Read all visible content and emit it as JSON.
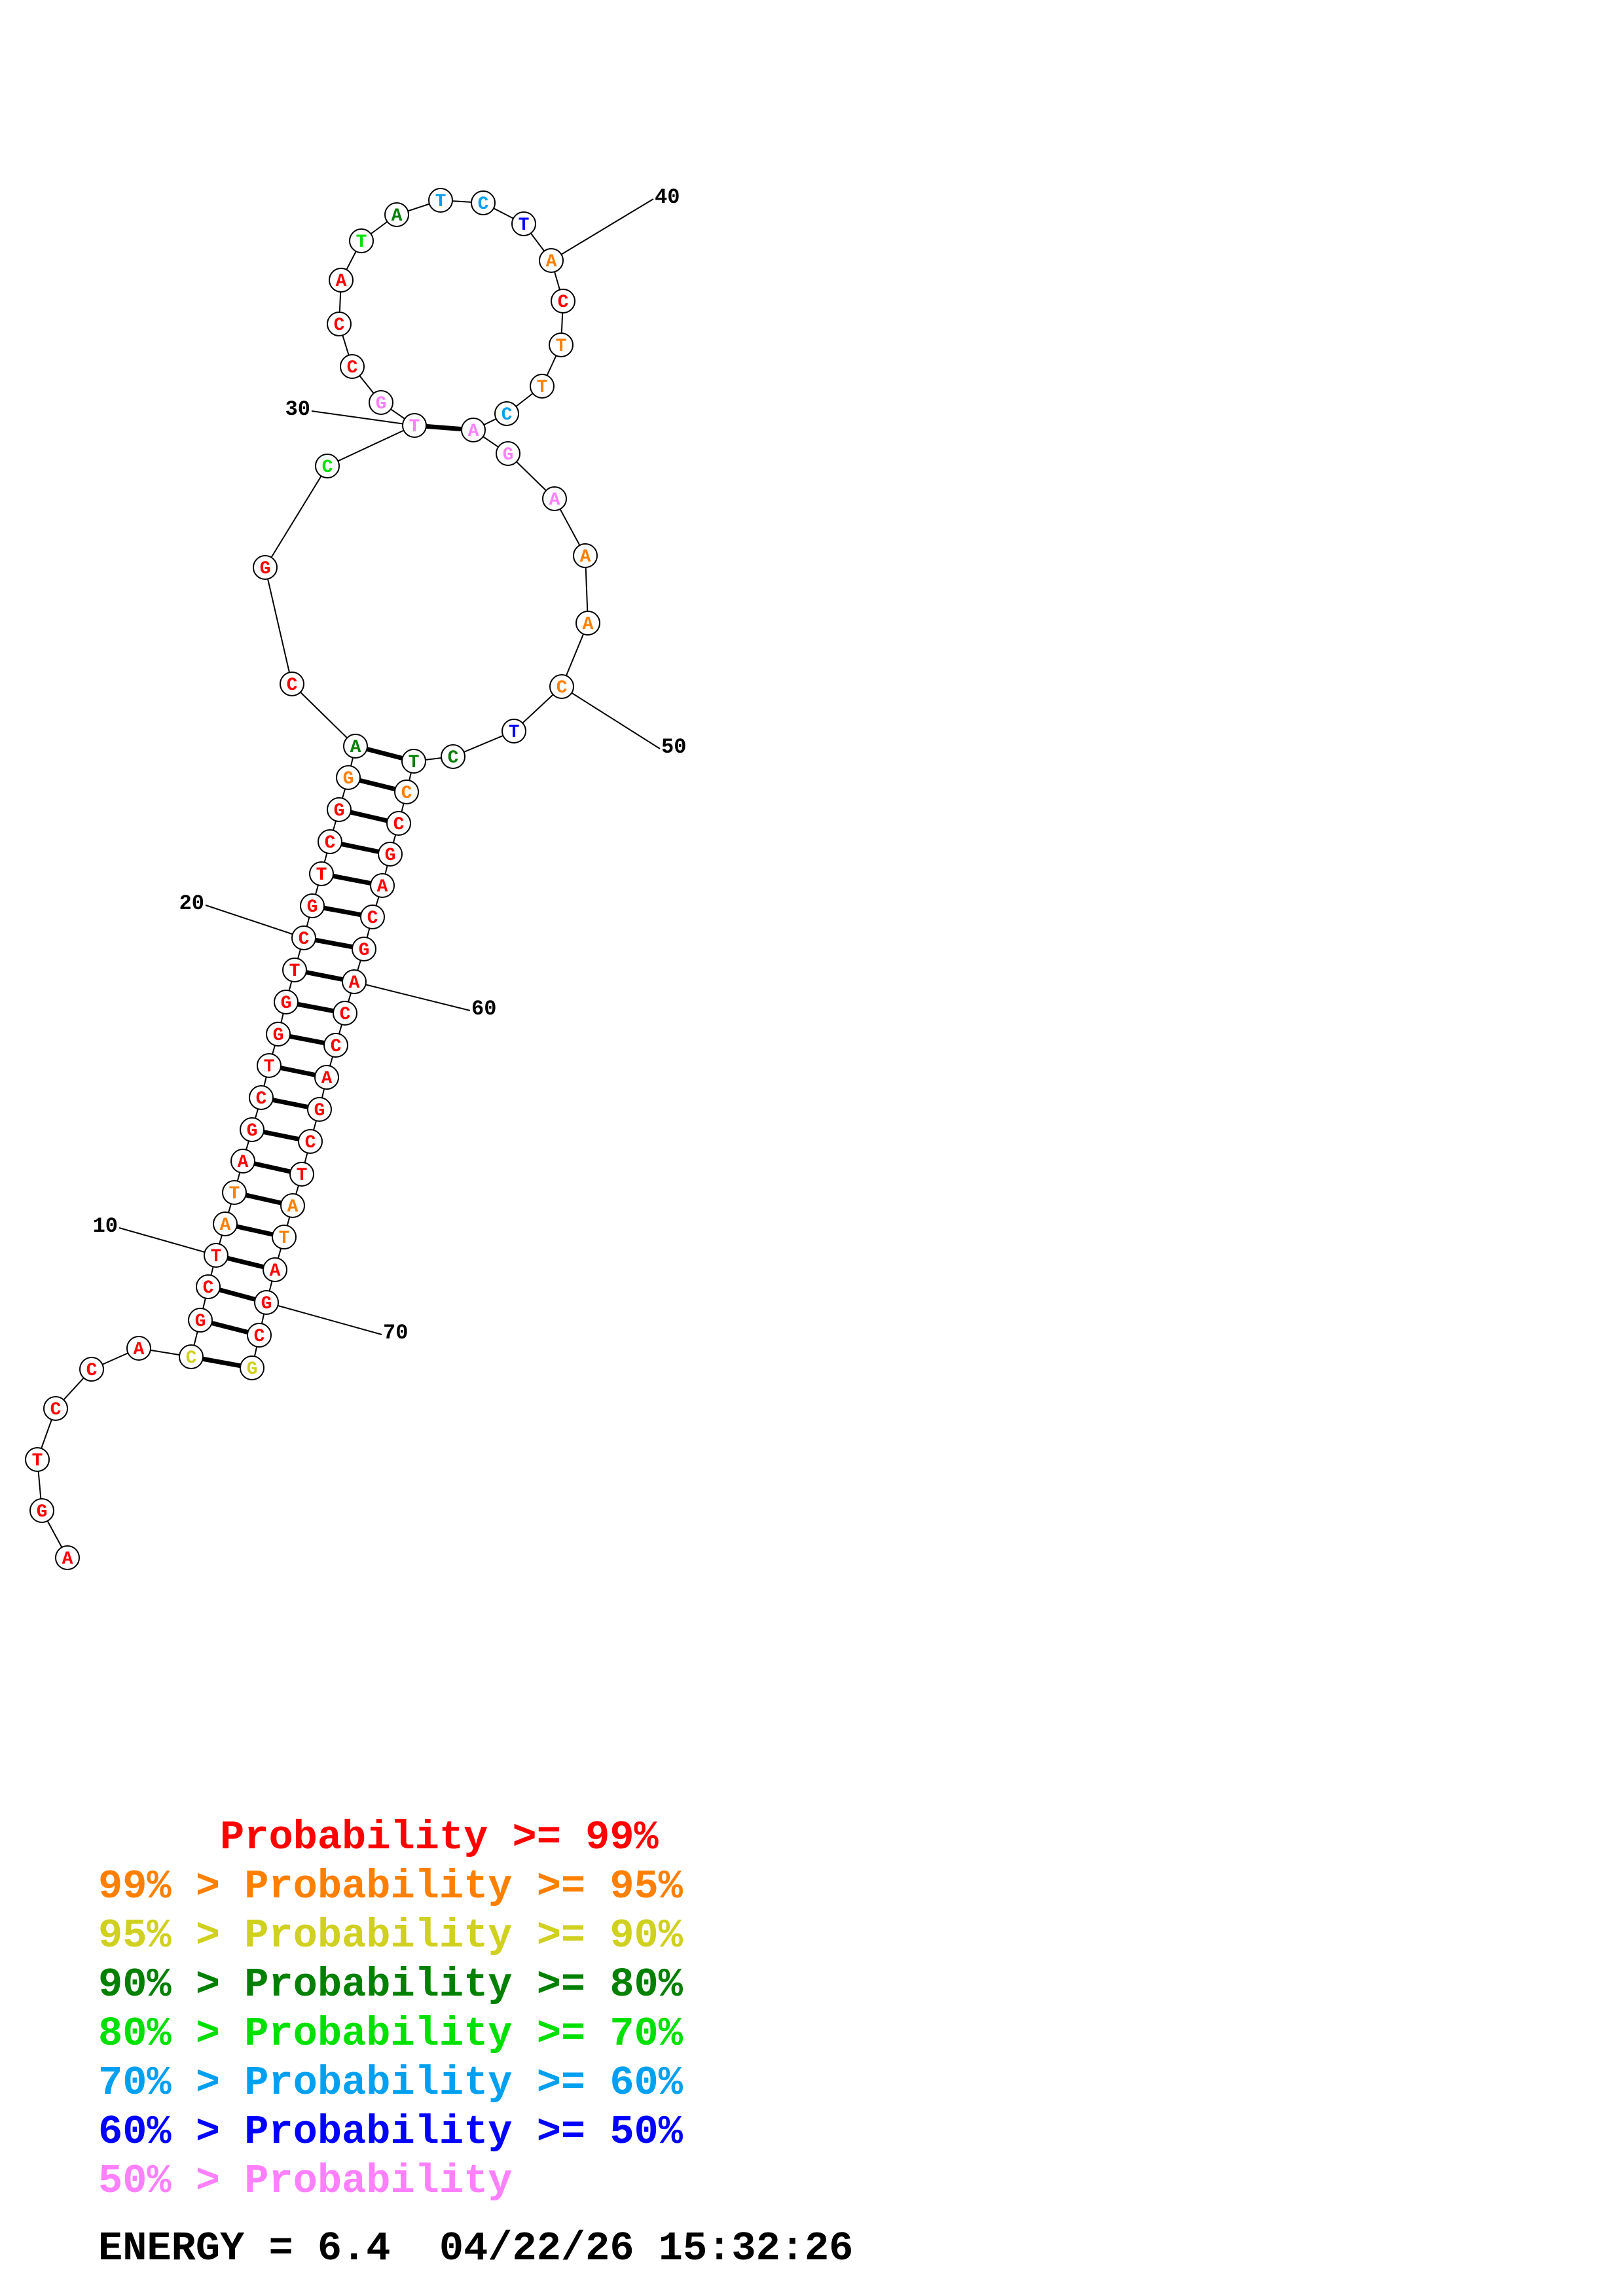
{
  "colors": {
    "red": "#ff0000",
    "orange": "#ff8000",
    "yellow": "#d0d020",
    "darkgreen": "#008000",
    "green": "#00e000",
    "lightblue": "#00a0f0",
    "blue": "#0000ff",
    "pink": "#ff80ff"
  },
  "sequence": [
    {
      "n": 1,
      "b": "A",
      "c": "red"
    },
    {
      "n": 2,
      "b": "G",
      "c": "red"
    },
    {
      "n": 3,
      "b": "T",
      "c": "red"
    },
    {
      "n": 4,
      "b": "C",
      "c": "red"
    },
    {
      "n": 5,
      "b": "C",
      "c": "red"
    },
    {
      "n": 6,
      "b": "A",
      "c": "red"
    },
    {
      "n": 7,
      "b": "C",
      "c": "yellow"
    },
    {
      "n": 8,
      "b": "G",
      "c": "red"
    },
    {
      "n": 9,
      "b": "C",
      "c": "red"
    },
    {
      "n": 10,
      "b": "T",
      "c": "red"
    },
    {
      "n": 11,
      "b": "A",
      "c": "orange"
    },
    {
      "n": 12,
      "b": "T",
      "c": "orange"
    },
    {
      "n": 13,
      "b": "A",
      "c": "red"
    },
    {
      "n": 14,
      "b": "G",
      "c": "red"
    },
    {
      "n": 15,
      "b": "C",
      "c": "red"
    },
    {
      "n": 16,
      "b": "T",
      "c": "red"
    },
    {
      "n": 17,
      "b": "G",
      "c": "red"
    },
    {
      "n": 18,
      "b": "G",
      "c": "red"
    },
    {
      "n": 19,
      "b": "T",
      "c": "red"
    },
    {
      "n": 20,
      "b": "C",
      "c": "red"
    },
    {
      "n": 21,
      "b": "G",
      "c": "red"
    },
    {
      "n": 22,
      "b": "T",
      "c": "red"
    },
    {
      "n": 23,
      "b": "C",
      "c": "red"
    },
    {
      "n": 24,
      "b": "G",
      "c": "red"
    },
    {
      "n": 25,
      "b": "G",
      "c": "orange"
    },
    {
      "n": 26,
      "b": "A",
      "c": "darkgreen"
    },
    {
      "n": 27,
      "b": "C",
      "c": "red"
    },
    {
      "n": 28,
      "b": "G",
      "c": "red"
    },
    {
      "n": 29,
      "b": "C",
      "c": "green"
    },
    {
      "n": 30,
      "b": "T",
      "c": "pink"
    },
    {
      "n": 31,
      "b": "G",
      "c": "pink"
    },
    {
      "n": 32,
      "b": "C",
      "c": "red"
    },
    {
      "n": 33,
      "b": "C",
      "c": "red"
    },
    {
      "n": 34,
      "b": "A",
      "c": "red"
    },
    {
      "n": 35,
      "b": "T",
      "c": "green"
    },
    {
      "n": 36,
      "b": "A",
      "c": "darkgreen"
    },
    {
      "n": 37,
      "b": "T",
      "c": "lightblue"
    },
    {
      "n": 38,
      "b": "C",
      "c": "lightblue"
    },
    {
      "n": 39,
      "b": "T",
      "c": "blue"
    },
    {
      "n": 40,
      "b": "A",
      "c": "orange"
    },
    {
      "n": 41,
      "b": "C",
      "c": "red"
    },
    {
      "n": 42,
      "b": "T",
      "c": "orange"
    },
    {
      "n": 43,
      "b": "T",
      "c": "orange"
    },
    {
      "n": 44,
      "b": "C",
      "c": "lightblue"
    },
    {
      "n": 45,
      "b": "A",
      "c": "pink"
    },
    {
      "n": 46,
      "b": "G",
      "c": "pink"
    },
    {
      "n": 47,
      "b": "A",
      "c": "pink"
    },
    {
      "n": 48,
      "b": "A",
      "c": "orange"
    },
    {
      "n": 49,
      "b": "A",
      "c": "orange"
    },
    {
      "n": 50,
      "b": "C",
      "c": "orange"
    },
    {
      "n": 51,
      "b": "T",
      "c": "blue"
    },
    {
      "n": 52,
      "b": "C",
      "c": "darkgreen"
    },
    {
      "n": 53,
      "b": "T",
      "c": "darkgreen"
    },
    {
      "n": 54,
      "b": "C",
      "c": "orange"
    },
    {
      "n": 55,
      "b": "C",
      "c": "red"
    },
    {
      "n": 56,
      "b": "G",
      "c": "red"
    },
    {
      "n": 57,
      "b": "A",
      "c": "red"
    },
    {
      "n": 58,
      "b": "C",
      "c": "red"
    },
    {
      "n": 59,
      "b": "G",
      "c": "red"
    },
    {
      "n": 60,
      "b": "A",
      "c": "red"
    },
    {
      "n": 61,
      "b": "C",
      "c": "red"
    },
    {
      "n": 62,
      "b": "C",
      "c": "red"
    },
    {
      "n": 63,
      "b": "A",
      "c": "red"
    },
    {
      "n": 64,
      "b": "G",
      "c": "red"
    },
    {
      "n": 65,
      "b": "C",
      "c": "red"
    },
    {
      "n": 66,
      "b": "T",
      "c": "red"
    },
    {
      "n": 67,
      "b": "A",
      "c": "orange"
    },
    {
      "n": 68,
      "b": "T",
      "c": "orange"
    },
    {
      "n": 69,
      "b": "A",
      "c": "red"
    },
    {
      "n": 70,
      "b": "G",
      "c": "red"
    },
    {
      "n": 71,
      "b": "C",
      "c": "red"
    },
    {
      "n": 72,
      "b": "G",
      "c": "yellow"
    }
  ],
  "pairs": [
    [
      7,
      72
    ],
    [
      8,
      71
    ],
    [
      9,
      70
    ],
    [
      10,
      69
    ],
    [
      11,
      68
    ],
    [
      12,
      67
    ],
    [
      13,
      66
    ],
    [
      14,
      65
    ],
    [
      15,
      64
    ],
    [
      16,
      63
    ],
    [
      17,
      62
    ],
    [
      18,
      61
    ],
    [
      19,
      60
    ],
    [
      20,
      59
    ],
    [
      21,
      58
    ],
    [
      22,
      57
    ],
    [
      23,
      56
    ],
    [
      24,
      55
    ],
    [
      25,
      54
    ],
    [
      26,
      53
    ],
    [
      30,
      45
    ]
  ],
  "position_labels": [
    {
      "n": 10,
      "text": "10"
    },
    {
      "n": 20,
      "text": "20"
    },
    {
      "n": 30,
      "text": "30"
    },
    {
      "n": 40,
      "text": "40"
    },
    {
      "n": 50,
      "text": "50"
    },
    {
      "n": 60,
      "text": "60"
    },
    {
      "n": 70,
      "text": "70"
    }
  ],
  "legend": [
    {
      "text": "     Probability >= 99%",
      "color": "red"
    },
    {
      "text": "99% > Probability >= 95%",
      "color": "orange"
    },
    {
      "text": "95% > Probability >= 90%",
      "color": "yellow"
    },
    {
      "text": "90% > Probability >= 80%",
      "color": "darkgreen"
    },
    {
      "text": "80% > Probability >= 70%",
      "color": "green"
    },
    {
      "text": "70% > Probability >= 60%",
      "color": "lightblue"
    },
    {
      "text": "60% > Probability >= 50%",
      "color": "blue"
    },
    {
      "text": "50% > Probability",
      "color": "pink"
    }
  ],
  "footer": {
    "energy_text": "ENERGY = 6.4  04/22/26 15:32:26"
  }
}
